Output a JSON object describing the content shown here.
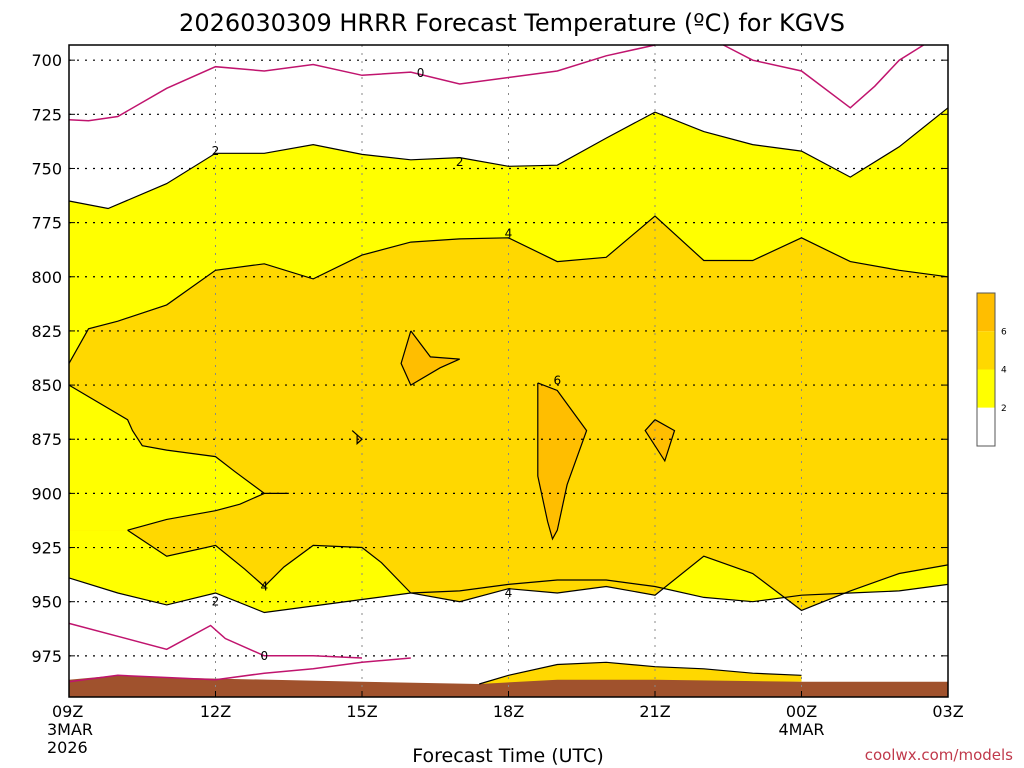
{
  "chart_data": {
    "type": "contour",
    "title": "2026030309 HRRR Forecast Temperature (ºC) for KGVS",
    "xlabel": "Forecast Time (UTC)",
    "ylabel": "",
    "credit": "coolwx.com/models",
    "x_range": [
      0,
      18
    ],
    "y_range": [
      693,
      994
    ],
    "y_ticks": [
      700,
      725,
      750,
      775,
      800,
      825,
      850,
      875,
      900,
      925,
      950,
      975
    ],
    "x_ticks": [
      {
        "t": 0,
        "label": "09Z",
        "sub1": "3MAR",
        "sub2": "2026"
      },
      {
        "t": 3,
        "label": "12Z",
        "sub1": "",
        "sub2": ""
      },
      {
        "t": 6,
        "label": "15Z",
        "sub1": "",
        "sub2": ""
      },
      {
        "t": 9,
        "label": "18Z",
        "sub1": "",
        "sub2": ""
      },
      {
        "t": 12,
        "label": "21Z",
        "sub1": "",
        "sub2": ""
      },
      {
        "t": 15,
        "label": "00Z",
        "sub1": "4MAR",
        "sub2": ""
      },
      {
        "t": 18,
        "label": "03Z",
        "sub1": "",
        "sub2": ""
      }
    ],
    "legend": {
      "levels": [
        "2",
        "4",
        "6"
      ],
      "colors": [
        "#ffffff",
        "#ffff00",
        "#ffd800",
        "#ffbe00"
      ]
    },
    "colors": {
      "lt0": "#ffffff",
      "c0_2": "#ffffff",
      "c2_4": "#ffff00",
      "c4_6": "#ffd800",
      "c6_8": "#ffbe00",
      "ground": "#a0522d",
      "zero_line": "#c0146e",
      "contour": "#000000"
    },
    "contours": {
      "zero_upper": {
        "level": "0",
        "pts": [
          [
            0,
            727.5
          ],
          [
            0.4,
            728
          ],
          [
            1,
            726
          ],
          [
            2,
            713
          ],
          [
            3,
            703
          ],
          [
            4,
            705
          ],
          [
            5,
            702
          ],
          [
            6,
            707
          ],
          [
            7,
            705.5
          ],
          [
            8,
            711
          ],
          [
            9,
            708
          ],
          [
            10,
            705
          ],
          [
            11,
            698
          ],
          [
            12,
            693
          ]
        ]
      },
      "zero_upper_b": {
        "pts": [
          [
            13.4,
            693
          ],
          [
            14,
            700
          ],
          [
            15,
            705
          ],
          [
            16,
            722
          ],
          [
            16.5,
            712
          ],
          [
            17,
            700
          ],
          [
            17.5,
            693
          ]
        ]
      },
      "two_upper": {
        "level": "2",
        "pts": [
          [
            0,
            765
          ],
          [
            0.8,
            768.5
          ],
          [
            2,
            757
          ],
          [
            3,
            743
          ],
          [
            4,
            743
          ],
          [
            5,
            739
          ],
          [
            6,
            743.5
          ],
          [
            7,
            746
          ],
          [
            8,
            745
          ],
          [
            9,
            749
          ],
          [
            10,
            748.5
          ],
          [
            11,
            736
          ],
          [
            12,
            724
          ],
          [
            13,
            733
          ],
          [
            14,
            739
          ],
          [
            15,
            742
          ],
          [
            16,
            754
          ],
          [
            17,
            740
          ],
          [
            18,
            722
          ]
        ]
      },
      "four_upper": {
        "level": "4",
        "pts": [
          [
            0,
            840
          ],
          [
            0.4,
            824
          ],
          [
            1,
            820.5
          ],
          [
            2,
            813
          ],
          [
            3,
            797
          ],
          [
            4,
            794
          ],
          [
            5,
            801
          ],
          [
            6,
            790
          ],
          [
            7,
            784
          ],
          [
            8,
            782.5
          ],
          [
            9,
            782
          ],
          [
            10,
            793
          ],
          [
            11,
            791
          ],
          [
            12,
            772
          ],
          [
            13,
            792.5
          ],
          [
            14,
            792.5
          ],
          [
            15,
            782
          ],
          [
            16,
            793
          ],
          [
            17,
            797
          ],
          [
            18,
            800
          ]
        ]
      },
      "six_a": {
        "level": "6",
        "pts": [
          [
            7,
            825
          ],
          [
            7.4,
            837
          ],
          [
            8,
            838
          ],
          [
            7.6,
            842
          ],
          [
            7,
            850
          ],
          [
            6.8,
            840
          ],
          [
            7,
            825
          ]
        ]
      },
      "six_b": {
        "level": "6",
        "pts": [
          [
            9.6,
            849
          ],
          [
            10,
            852.5
          ],
          [
            10.6,
            871
          ],
          [
            10.2,
            896
          ],
          [
            10,
            917
          ],
          [
            9.9,
            921
          ],
          [
            9.8,
            913
          ],
          [
            9.6,
            892
          ],
          [
            9.6,
            871
          ],
          [
            9.6,
            849
          ]
        ]
      },
      "six_c": {
        "level": "6",
        "pts": [
          [
            12,
            866
          ],
          [
            12.4,
            871
          ],
          [
            12.2,
            885
          ],
          [
            11.8,
            871
          ],
          [
            12,
            866
          ]
        ]
      },
      "six_d": {
        "pts": [
          [
            5.8,
            871
          ],
          [
            6,
            875
          ],
          [
            5.9,
            877
          ],
          [
            5.9,
            873
          ],
          [
            5.8,
            871
          ]
        ]
      },
      "four_lower": {
        "level": "4",
        "pts": [
          [
            0,
            850
          ],
          [
            1.2,
            866
          ],
          [
            1.3,
            871
          ],
          [
            1.5,
            878
          ],
          [
            2,
            880
          ],
          [
            3,
            883
          ],
          [
            3.4,
            890
          ],
          [
            4,
            900
          ],
          [
            4.5,
            900
          ]
        ]
      },
      "four_lower_b": {
        "pts": [
          [
            1.2,
            917
          ],
          [
            2,
            912
          ],
          [
            3,
            908
          ],
          [
            3.5,
            905
          ],
          [
            4,
            900
          ]
        ]
      },
      "four_lower_c": {
        "pts": [
          [
            1.2,
            917
          ],
          [
            2,
            929
          ],
          [
            3,
            924
          ],
          [
            3.6,
            935
          ],
          [
            4,
            943
          ],
          [
            4.4,
            934
          ],
          [
            5,
            924
          ],
          [
            6,
            925
          ],
          [
            6.4,
            932
          ],
          [
            7,
            946
          ],
          [
            8,
            950
          ],
          [
            9,
            944
          ],
          [
            10,
            946
          ],
          [
            11,
            943
          ],
          [
            12,
            947
          ],
          [
            13,
            929
          ],
          [
            14,
            937
          ],
          [
            15,
            954
          ],
          [
            16,
            945
          ],
          [
            17,
            937
          ],
          [
            18,
            933
          ]
        ]
      },
      "two_lower": {
        "level": "2",
        "pts": [
          [
            0,
            939
          ],
          [
            1,
            946
          ],
          [
            2,
            951.5
          ],
          [
            3,
            946
          ],
          [
            4,
            955
          ],
          [
            5,
            952
          ],
          [
            6,
            949
          ],
          [
            7,
            946
          ],
          [
            8,
            945
          ],
          [
            9,
            942
          ],
          [
            10,
            940
          ],
          [
            11,
            940
          ],
          [
            12,
            943
          ],
          [
            13,
            948
          ],
          [
            14,
            950
          ],
          [
            15,
            947
          ],
          [
            16,
            946
          ],
          [
            17,
            945
          ],
          [
            18,
            942
          ]
        ]
      },
      "zero_lower_a": {
        "level": "0",
        "pts": [
          [
            0,
            960
          ],
          [
            1,
            966
          ],
          [
            2,
            972
          ],
          [
            2.9,
            961
          ],
          [
            3.2,
            967
          ],
          [
            4,
            975
          ],
          [
            5,
            975
          ],
          [
            6,
            976
          ]
        ]
      },
      "zero_lower_b": {
        "pts": [
          [
            0,
            987
          ],
          [
            1,
            984
          ],
          [
            2,
            985
          ],
          [
            3,
            986
          ],
          [
            4,
            983
          ],
          [
            5,
            981
          ],
          [
            6,
            978
          ],
          [
            7,
            976
          ]
        ]
      },
      "four_bottom": {
        "pts": [
          [
            8.4,
            988
          ],
          [
            9,
            984
          ],
          [
            10,
            979
          ],
          [
            11,
            978
          ],
          [
            12,
            980
          ],
          [
            13,
            981
          ],
          [
            14,
            983
          ],
          [
            15,
            984
          ]
        ]
      }
    },
    "ground_top": [
      [
        0,
        986
      ],
      [
        1,
        984
      ],
      [
        2,
        985
      ],
      [
        6,
        987
      ],
      [
        8.4,
        988
      ],
      [
        10,
        986
      ],
      [
        12,
        986
      ],
      [
        15,
        987
      ],
      [
        18,
        987
      ]
    ]
  }
}
